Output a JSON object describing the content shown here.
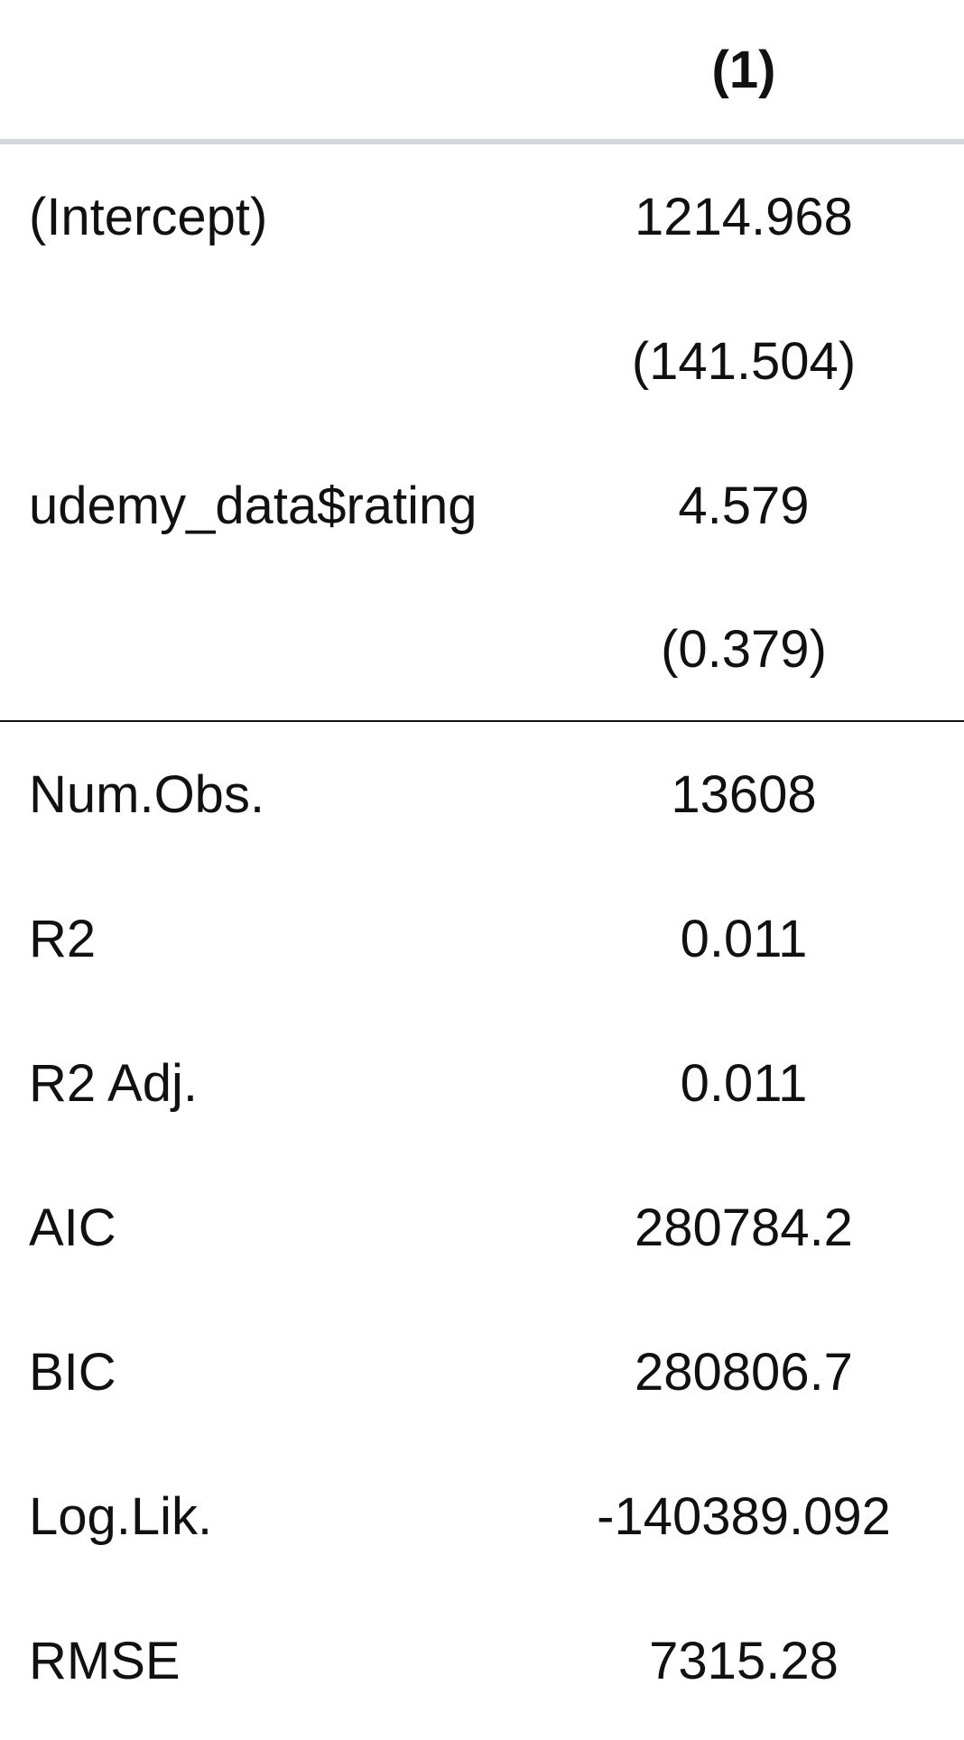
{
  "table": {
    "header": {
      "label": "",
      "model": "(1)"
    },
    "coefficients": [
      {
        "label": "(Intercept)",
        "value": "1214.968"
      },
      {
        "label": "",
        "value": "(141.504)"
      },
      {
        "label": "udemy_data$rating",
        "value": "4.579"
      },
      {
        "label": "",
        "value": "(0.379)"
      }
    ],
    "statistics": [
      {
        "label": "Num.Obs.",
        "value": "13608"
      },
      {
        "label": "R2",
        "value": "0.011"
      },
      {
        "label": "R2 Adj.",
        "value": "0.011"
      },
      {
        "label": "AIC",
        "value": "280784.2"
      },
      {
        "label": "BIC",
        "value": "280806.7"
      },
      {
        "label": "Log.Lik.",
        "value": "-140389.092"
      },
      {
        "label": "RMSE",
        "value": "7315.28"
      }
    ]
  }
}
